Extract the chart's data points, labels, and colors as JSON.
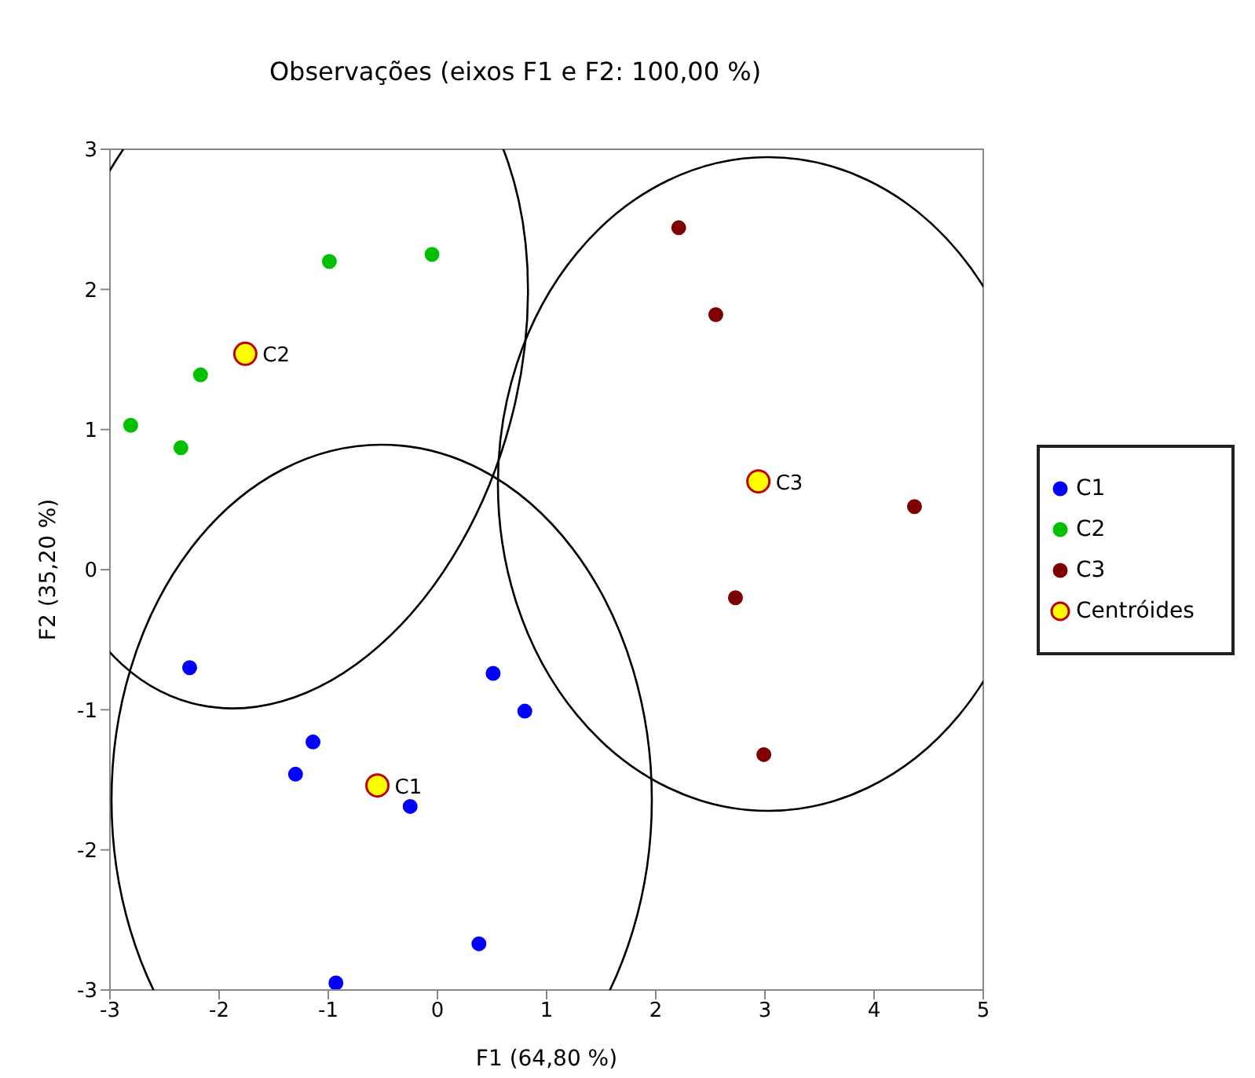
{
  "chart_data": {
    "type": "scatter",
    "title": "Observações (eixos F1 e F2: 100,00 %)",
    "xlabel": "F1 (64,80 %)",
    "ylabel": "F2 (35,20 %)",
    "xlim": [
      -3,
      5
    ],
    "xticks": [
      -3,
      -2,
      -1,
      0,
      1,
      2,
      3,
      4,
      5
    ],
    "ylim": [
      -3,
      3
    ],
    "yticks": [
      -3,
      -2,
      -1,
      0,
      1,
      2,
      3
    ],
    "grid": false,
    "legend": "right",
    "marker": "circle",
    "series": [
      {
        "name": "C1",
        "color": "#0000ff",
        "x": [
          -2.27,
          -1.14,
          -1.3,
          -0.25,
          0.51,
          0.8,
          0.38,
          -0.93
        ],
        "values": [
          -0.7,
          -1.23,
          -1.46,
          -1.69,
          -0.74,
          -1.01,
          -2.67,
          -2.95
        ]
      },
      {
        "name": "C2",
        "color": "#00c000",
        "x": [
          -2.81,
          -2.35,
          -2.17,
          -0.99,
          -0.05
        ],
        "values": [
          1.03,
          0.87,
          1.39,
          2.2,
          2.25
        ]
      },
      {
        "name": "C3",
        "color": "#7f0000",
        "x": [
          2.21,
          2.55,
          4.37,
          2.73,
          2.99
        ],
        "values": [
          2.44,
          1.82,
          0.45,
          -0.2,
          -1.32
        ]
      },
      {
        "name": "Centróides",
        "color": "#ffff00",
        "x": [
          -0.55,
          -1.76,
          2.94
        ],
        "values": [
          -1.54,
          1.54,
          0.63
        ]
      }
    ],
    "annotations": [
      {
        "text": "C1",
        "x": -0.55,
        "y": -1.54
      },
      {
        "text": "C2",
        "x": -1.76,
        "y": 1.54
      },
      {
        "text": "C3",
        "x": 2.94,
        "y": 0.63
      }
    ]
  }
}
